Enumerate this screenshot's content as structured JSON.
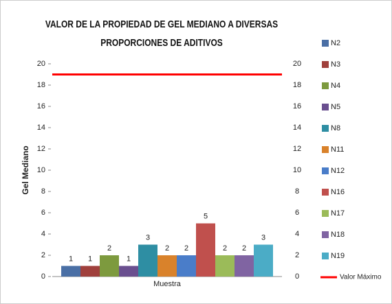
{
  "chart_data": {
    "type": "bar",
    "title": "VALOR DE LA PROPIEDAD DE GEL MEDIANO A DIVERSAS PROPORCIONES DE ADITIVOS",
    "y_label": "Gel Mediano",
    "categories": [
      "Muestra"
    ],
    "series": [
      {
        "name": "N2",
        "color": "#4a6fa5",
        "values": [
          1
        ]
      },
      {
        "name": "N3",
        "color": "#a0403c",
        "values": [
          1
        ]
      },
      {
        "name": "N4",
        "color": "#7d9a3e",
        "values": [
          2
        ]
      },
      {
        "name": "N5",
        "color": "#6a4f8f",
        "values": [
          1
        ]
      },
      {
        "name": "N8",
        "color": "#2e8ea3",
        "values": [
          3
        ]
      },
      {
        "name": "N11",
        "color": "#d9822b",
        "values": [
          2
        ]
      },
      {
        "name": "N12",
        "color": "#4a7dc9",
        "values": [
          2
        ]
      },
      {
        "name": "N16",
        "color": "#c0504d",
        "values": [
          5
        ]
      },
      {
        "name": "N17",
        "color": "#9bbb59",
        "values": [
          2
        ]
      },
      {
        "name": "N18",
        "color": "#8064a2",
        "values": [
          2
        ]
      },
      {
        "name": "N19",
        "color": "#4bacc6",
        "values": [
          3
        ]
      },
      {
        "name": "Valor Máximo",
        "color": "#ff0000",
        "type": "line",
        "values": [
          19
        ]
      }
    ],
    "ylim": [
      0,
      20
    ],
    "yticks": [
      0,
      2,
      4,
      6,
      8,
      10,
      12,
      14,
      16,
      18,
      20
    ],
    "y2lim": [
      0,
      20
    ],
    "y2ticks": [
      0,
      2,
      4,
      6,
      8,
      10,
      12,
      14,
      16,
      18,
      20
    ],
    "legend": "right",
    "data_labels": true
  }
}
